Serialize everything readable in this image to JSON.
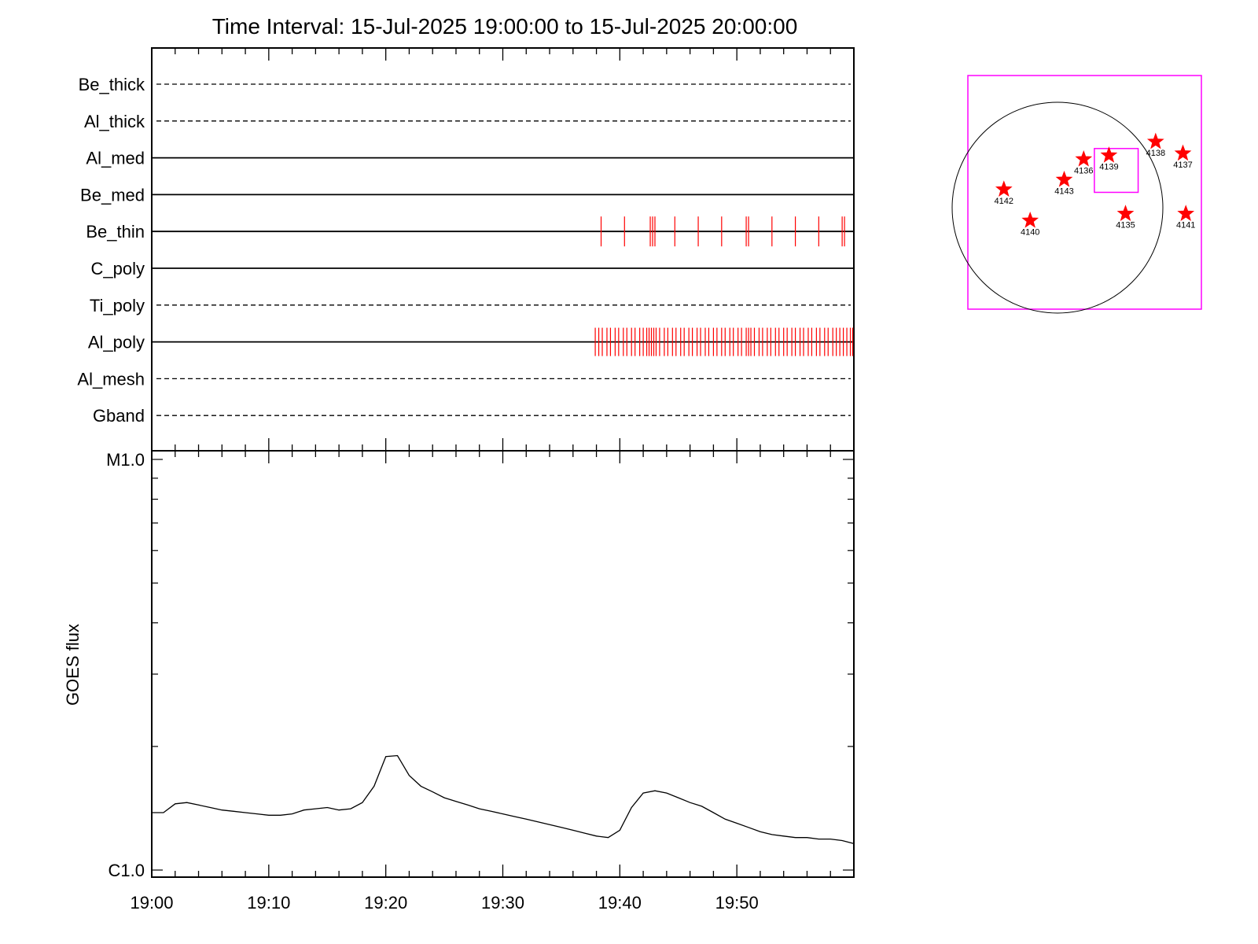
{
  "chart_data": [
    {
      "type": "timeline",
      "title": "Time Interval: 15-Jul-2025 19:00:00 to 15-Jul-2025 20:00:00",
      "x_range_minutes": [
        0,
        60
      ],
      "rows": [
        {
          "label": "Be_thick",
          "style": "dashed",
          "events": []
        },
        {
          "label": "Al_thick",
          "style": "dashed",
          "events": []
        },
        {
          "label": "Al_med",
          "style": "solid",
          "events": []
        },
        {
          "label": "Be_med",
          "style": "solid",
          "events": []
        },
        {
          "label": "Be_thin",
          "style": "solid",
          "events": [
            38.4,
            40.4,
            42.6,
            42.8,
            43.0,
            44.7,
            46.7,
            48.7,
            50.8,
            51.0,
            53.0,
            55.0,
            57.0,
            59.0,
            59.2
          ]
        },
        {
          "label": "C_poly",
          "style": "solid",
          "events": []
        },
        {
          "label": "Ti_poly",
          "style": "dashed",
          "events": []
        },
        {
          "label": "Al_poly",
          "style": "solid",
          "events": [
            37.9,
            38.2,
            38.5,
            38.9,
            39.2,
            39.6,
            39.9,
            40.3,
            40.6,
            41.0,
            41.3,
            41.7,
            42.0,
            42.3,
            42.5,
            42.7,
            42.9,
            43.1,
            43.4,
            43.8,
            44.1,
            44.5,
            44.8,
            45.2,
            45.5,
            45.9,
            46.2,
            46.6,
            46.9,
            47.3,
            47.6,
            48.0,
            48.3,
            48.7,
            49.0,
            49.4,
            49.7,
            50.1,
            50.4,
            50.8,
            51.0,
            51.2,
            51.5,
            51.9,
            52.2,
            52.6,
            52.9,
            53.3,
            53.6,
            54.0,
            54.3,
            54.7,
            55.0,
            55.4,
            55.7,
            56.1,
            56.4,
            56.8,
            57.1,
            57.5,
            57.8,
            58.2,
            58.5,
            58.8,
            59.1,
            59.4,
            59.7,
            59.9
          ]
        },
        {
          "label": "Al_mesh",
          "style": "dashed",
          "events": []
        },
        {
          "label": "Gband",
          "style": "dashed",
          "events": []
        }
      ]
    },
    {
      "type": "line",
      "ylabel": "GOES flux",
      "y_scale": "log",
      "ylim": [
        1e-06,
        1e-05
      ],
      "y_ticks": [
        {
          "value": 1e-06,
          "label": "C1.0"
        },
        {
          "value": 1e-05,
          "label": "M1.0"
        }
      ],
      "x_range_minutes": [
        0,
        60
      ],
      "x_ticks": [
        {
          "value": 0,
          "label": "19:00"
        },
        {
          "value": 10,
          "label": "19:10"
        },
        {
          "value": 20,
          "label": "19:20"
        },
        {
          "value": 30,
          "label": "19:30"
        },
        {
          "value": 40,
          "label": "19:40"
        },
        {
          "value": 50,
          "label": "19:50"
        }
      ],
      "series": [
        {
          "x": [
            0,
            1,
            2,
            3,
            4,
            5,
            6,
            7,
            8,
            9,
            10,
            11,
            12,
            13,
            14,
            15,
            16,
            17,
            18,
            19,
            20,
            21,
            22,
            23,
            24,
            25,
            26,
            27,
            28,
            29,
            30,
            31,
            32,
            33,
            34,
            35,
            36,
            37,
            38,
            39,
            40,
            41,
            42,
            43,
            44,
            45,
            46,
            47,
            48,
            49,
            50,
            51,
            52,
            53,
            54,
            55,
            56,
            57,
            58,
            59,
            60
          ],
          "y": [
            1.38e-06,
            1.38e-06,
            1.45e-06,
            1.46e-06,
            1.44e-06,
            1.42e-06,
            1.4e-06,
            1.39e-06,
            1.38e-06,
            1.37e-06,
            1.36e-06,
            1.36e-06,
            1.37e-06,
            1.4e-06,
            1.41e-06,
            1.42e-06,
            1.4e-06,
            1.41e-06,
            1.46e-06,
            1.6e-06,
            1.89e-06,
            1.9e-06,
            1.7e-06,
            1.6e-06,
            1.55e-06,
            1.5e-06,
            1.47e-06,
            1.44e-06,
            1.41e-06,
            1.39e-06,
            1.37e-06,
            1.35e-06,
            1.33e-06,
            1.31e-06,
            1.29e-06,
            1.27e-06,
            1.25e-06,
            1.23e-06,
            1.21e-06,
            1.2e-06,
            1.25e-06,
            1.42e-06,
            1.54e-06,
            1.56e-06,
            1.54e-06,
            1.5e-06,
            1.46e-06,
            1.43e-06,
            1.38e-06,
            1.33e-06,
            1.3e-06,
            1.27e-06,
            1.24e-06,
            1.22e-06,
            1.21e-06,
            1.2e-06,
            1.2e-06,
            1.19e-06,
            1.19e-06,
            1.18e-06,
            1.16e-06
          ]
        }
      ]
    },
    {
      "type": "scatter",
      "field_of_view": [
        -1200,
        -1200,
        1200,
        1200
      ],
      "regions": [
        {
          "label": "4142",
          "x": -830,
          "y": 30
        },
        {
          "label": "4140",
          "x": -560,
          "y": -290
        },
        {
          "label": "4143",
          "x": -210,
          "y": 130
        },
        {
          "label": "4136",
          "x": -10,
          "y": 340
        },
        {
          "label": "4139",
          "x": 250,
          "y": 380
        },
        {
          "label": "4138",
          "x": 730,
          "y": 520
        },
        {
          "label": "4137",
          "x": 1010,
          "y": 400
        },
        {
          "label": "4135",
          "x": 420,
          "y": -220
        },
        {
          "label": "4141",
          "x": 1040,
          "y": -220
        }
      ],
      "inner_box": [
        100,
        0,
        550,
        450
      ],
      "colors": {
        "box": "#ff00ff",
        "marker": "#ff0000"
      }
    }
  ]
}
